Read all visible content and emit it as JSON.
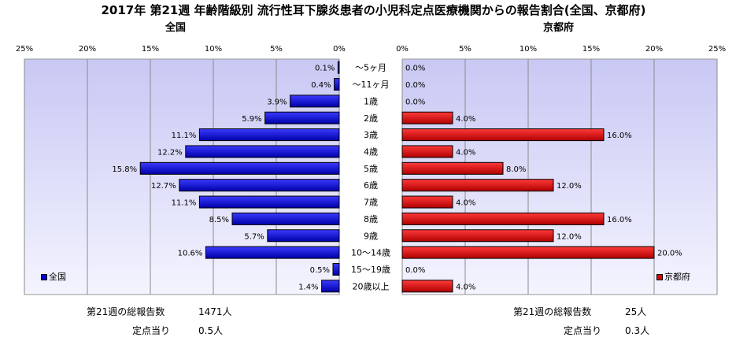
{
  "chart_data": {
    "type": "bar",
    "title": "2017年 第21週 年齢階級別 流行性耳下腺炎患者の小児科定点医療機関からの報告割合(全国、京都府)",
    "categories": [
      "～5ヶ月",
      "～11ヶ月",
      "1歳",
      "2歳",
      "3歳",
      "4歳",
      "5歳",
      "6歳",
      "7歳",
      "8歳",
      "9歳",
      "10～14歳",
      "15～19歳",
      "20歳以上"
    ],
    "xlim": [
      0,
      25
    ],
    "tick_labels": [
      "25%",
      "20%",
      "15%",
      "10%",
      "5%",
      "0%"
    ],
    "tick_labels_right": [
      "0%",
      "5%",
      "10%",
      "15%",
      "20%",
      "25%"
    ],
    "series": [
      {
        "name": "全国",
        "panel_title": "全国",
        "color": "#0000cc",
        "values": [
          0.1,
          0.4,
          3.9,
          5.9,
          11.1,
          12.2,
          15.8,
          12.7,
          11.1,
          8.5,
          5.7,
          10.6,
          0.5,
          1.4
        ],
        "labels": [
          "0.1%",
          "0.4%",
          "3.9%",
          "5.9%",
          "11.1%",
          "12.2%",
          "15.8%",
          "12.7%",
          "11.1%",
          "8.5%",
          "5.7%",
          "10.6%",
          "0.5%",
          "1.4%"
        ],
        "legend": "全国"
      },
      {
        "name": "京都府",
        "panel_title": "京都府",
        "color": "#e00000",
        "values": [
          0.0,
          0.0,
          0.0,
          4.0,
          16.0,
          4.0,
          8.0,
          12.0,
          4.0,
          16.0,
          12.0,
          20.0,
          0.0,
          4.0
        ],
        "labels": [
          "0.0%",
          "0.0%",
          "0.0%",
          "4.0%",
          "16.0%",
          "4.0%",
          "8.0%",
          "12.0%",
          "4.0%",
          "16.0%",
          "12.0%",
          "20.0%",
          "0.0%",
          "4.0%"
        ],
        "legend": "京都府"
      }
    ],
    "legend_placement": "bottom-left / bottom-right"
  },
  "footer": {
    "left_total_label": "第21週の総報告数",
    "left_total_value": "1471人",
    "left_per_label": "定点当り",
    "left_per_value": "0.5人",
    "right_total_label": "第21週の総報告数",
    "right_total_value": "25人",
    "right_per_label": "定点当り",
    "right_per_value": "0.3人"
  }
}
